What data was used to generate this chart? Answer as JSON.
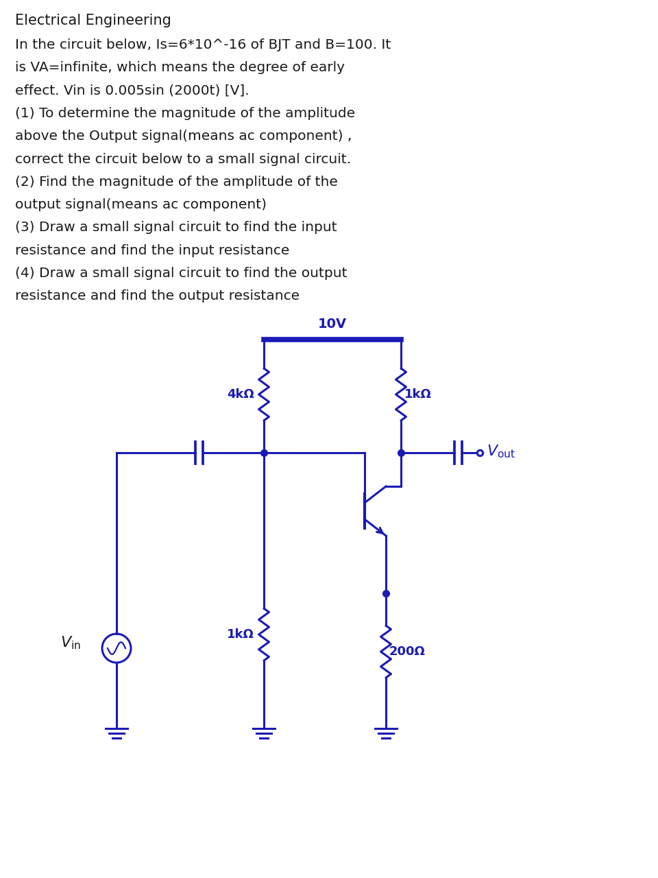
{
  "title_line1": "Electrical Engineering",
  "body_lines": [
    "In the circuit below, Is=6*10^-16 of BJT and B=100. It",
    "is VA=infinite, which means the degree of early",
    "effect. Vin is 0.005sin (2000t) [V].",
    "(1) To determine the magnitude of the amplitude",
    "above the Output signal(means ac component) ,",
    "correct the circuit below to a small signal circuit.",
    "(2) Find the magnitude of the amplitude of the",
    "output signal(means ac component)",
    "(3) Draw a small signal circuit to find the input",
    "resistance and find the input resistance",
    "(4) Draw a small signal circuit to find the output",
    "resistance and find the output resistance"
  ],
  "circuit_color": "#1a1ab5",
  "text_color": "#1a1a1a",
  "bg_color": "#ffffff",
  "font_size_title": 15,
  "font_size_body": 14.5,
  "vcc_label": "10V",
  "r1_label": "4kΩ",
  "r2_label": "1kΩ",
  "r3_label": "1kΩ",
  "r4_label": "200Ω",
  "vout_label": "V",
  "vout_sub": "out",
  "vin_label": "V",
  "vin_sub": "in"
}
